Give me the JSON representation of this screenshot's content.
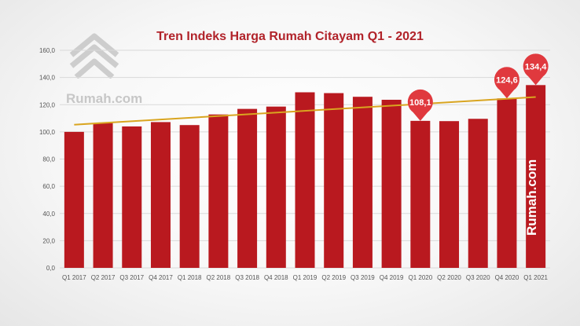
{
  "chart_data": {
    "type": "bar",
    "title": "Tren Indeks Harga Rumah Citayam Q1 - 2021",
    "categories": [
      "Q1 2017",
      "Q2 2017",
      "Q3 2017",
      "Q4 2017",
      "Q1 2018",
      "Q2 2018",
      "Q3 2018",
      "Q4 2018",
      "Q1 2019",
      "Q2 2019",
      "Q3 2019",
      "Q4 2019",
      "Q1 2020",
      "Q2 2020",
      "Q3 2020",
      "Q4 2020",
      "Q1 2021"
    ],
    "values": [
      100.0,
      106.5,
      104.0,
      107.2,
      105.0,
      112.8,
      116.9,
      118.6,
      129.1,
      128.5,
      125.8,
      123.6,
      108.1,
      107.9,
      109.6,
      124.6,
      134.4
    ],
    "ylim": [
      0,
      160
    ],
    "yticks": [
      "0,0",
      "20,0",
      "40,0",
      "60,0",
      "80,0",
      "100,0",
      "120,0",
      "140,0",
      "160,0"
    ],
    "trendline": {
      "type": "linear",
      "start": 105.3,
      "end": 125.6
    },
    "callouts": [
      {
        "index": 12,
        "label": "108,1"
      },
      {
        "index": 15,
        "label": "124,6"
      },
      {
        "index": 16,
        "label": "134,4"
      }
    ],
    "grid": true,
    "xlabel": "",
    "ylabel": ""
  },
  "colors": {
    "bar": "#b9191f",
    "trend": "#d9a520",
    "title": "#b1232a",
    "callout": "#e0393e"
  },
  "logo": {
    "text": "Rumah.com"
  },
  "watermark": {
    "text": "Rumah.com"
  }
}
